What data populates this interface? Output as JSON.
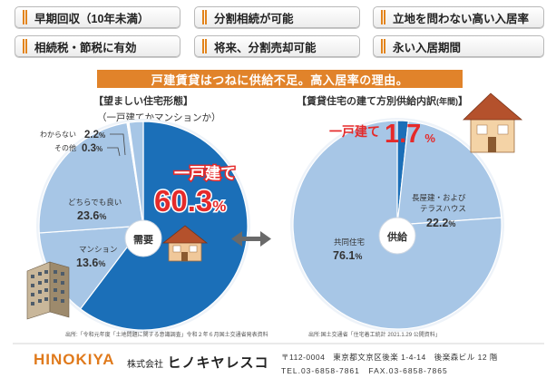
{
  "features": [
    "早期回収（10年未満）",
    "分割相続が可能",
    "立地を問わない高い入居率",
    "相続税・節税に有効",
    "将来、分割売却可能",
    "永い入居期間"
  ],
  "banner": "戸建賃貸はつねに供給不足。高入居率の理由。",
  "left": {
    "title": "【望ましい住宅形態】",
    "subtitle": "（一戸建てかマンションか）",
    "source": "出所:「令和元年度「土地問題に関する意識調査」令和２年６月国土交通省発表資料",
    "center_label": "需要"
  },
  "right": {
    "title": "【賃貸住宅の建て方別供給内訳",
    "title_small": "(年間)",
    "title_end": "】",
    "source": "出所:国土交通省「住宅着工統計 2021.1.29 公開資料」",
    "center_label": "供給"
  },
  "footer": {
    "logo": "HINOKIYA",
    "company_prefix": "株式会社",
    "company_name": "ヒノキヤレスコ",
    "address": "〒112-0004　東京都文京区後楽 1-4-14　後楽森ビル 12 階",
    "tel": "TEL.03-6858-7861　FAX.03-6858-7865"
  },
  "colors": {
    "orange": "#e1832a",
    "red": "#e52a2a",
    "dark_blue": "#1b6fb8",
    "light_blue": "#a7c6e6",
    "white": "#ffffff"
  },
  "chart_data": [
    {
      "type": "pie",
      "title": "【望ましい住宅形態】",
      "subtitle": "（一戸建てかマンションか）",
      "slices": [
        {
          "label": "一戸建て",
          "value": 60.3,
          "value_text": "60.3",
          "unit": "%"
        },
        {
          "label": "マンション",
          "value": 13.6,
          "value_text": "13.6",
          "unit": "%"
        },
        {
          "label": "どちらでも良い",
          "value": 23.6,
          "value_text": "23.6",
          "unit": "%"
        },
        {
          "label": "その他",
          "value": 0.3,
          "value_text": "0.3",
          "unit": "%"
        },
        {
          "label": "わからない",
          "value": 2.2,
          "value_text": "2.2",
          "unit": "%"
        }
      ]
    },
    {
      "type": "pie",
      "title": "【賃貸住宅の建て方別供給内訳(年間)】",
      "slices": [
        {
          "label": "一戸建て",
          "value": 1.7,
          "value_text": "1.7",
          "unit": "%"
        },
        {
          "label": "長屋建・および テラスハウス",
          "label_lines": [
            "長屋建・および",
            "テラスハウス"
          ],
          "value": 22.2,
          "value_text": "22.2",
          "unit": "%"
        },
        {
          "label": "共同住宅",
          "value": 76.1,
          "value_text": "76.1",
          "unit": "%"
        }
      ]
    }
  ]
}
